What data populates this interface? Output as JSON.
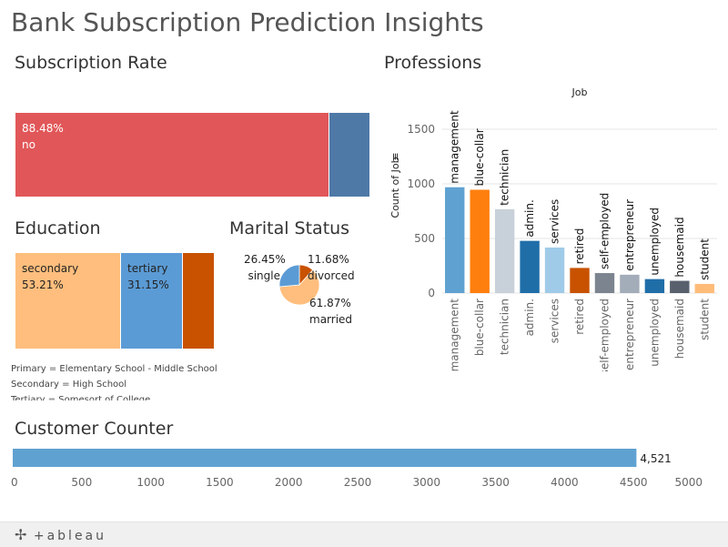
{
  "dashboard": {
    "title": "Bank Subscription Prediction Insights"
  },
  "subscription": {
    "title": "Subscription Rate",
    "segments": [
      {
        "label": "no",
        "percent": "88.48%",
        "value": 88.48,
        "color": "#e15759"
      },
      {
        "label": "",
        "percent": "",
        "value": 11.52,
        "color": "#4e79a7"
      }
    ]
  },
  "education": {
    "title": "Education",
    "segments": [
      {
        "label": "secondary",
        "percent": "53.21%",
        "value": 53.21,
        "color": "#ffbe7d"
      },
      {
        "label": "tertiary",
        "percent": "31.15%",
        "value": 31.15,
        "color": "#5b9bd5"
      },
      {
        "label": "",
        "percent": "",
        "value": 15.64,
        "color": "#c85200"
      }
    ],
    "notes": [
      "Primary = Elementary School - Middle School",
      "Secondary = High School",
      "Tertiary = Somesort of College"
    ]
  },
  "marital": {
    "title": "Marital Status",
    "slices": [
      {
        "label": "divorced",
        "percent": "11.68%",
        "value": 11.68,
        "color": "#c85200"
      },
      {
        "label": "married",
        "percent": "61.87%",
        "value": 61.87,
        "color": "#ffbe7d"
      },
      {
        "label": "single",
        "percent": "26.45%",
        "value": 26.45,
        "color": "#5b9bd5"
      }
    ]
  },
  "professions": {
    "title": "Professions"
  },
  "customer_counter": {
    "title": "Customer Counter"
  },
  "footer": {
    "brand": "+ableau"
  },
  "chart_data": [
    {
      "type": "bar",
      "title": "Job",
      "ylabel": "Count of Job",
      "categories": [
        "management",
        "blue-collar",
        "technician",
        "admin.",
        "services",
        "retired",
        "self-employed",
        "entrepreneur",
        "unemployed",
        "housemaid",
        "student"
      ],
      "values": [
        969,
        946,
        768,
        478,
        417,
        230,
        183,
        168,
        128,
        112,
        84
      ],
      "colors": [
        "#5fa2d1",
        "#ff7f0e",
        "#c8d0d9",
        "#1f6ea8",
        "#a0cbe8",
        "#c85200",
        "#7b848f",
        "#a3acb9",
        "#1f6ea8",
        "#57606c",
        "#ffbc79"
      ],
      "yticks": [
        0,
        500,
        1000,
        1500
      ],
      "ylim": [
        0,
        1700
      ],
      "grid": true
    },
    {
      "type": "bar",
      "title": "Customer Counter",
      "orientation": "horizontal",
      "values": [
        4521
      ],
      "value_label": "4,521",
      "xticks": [
        0,
        500,
        1000,
        1500,
        2000,
        2500,
        3000,
        3500,
        4000,
        4500,
        5000
      ],
      "xlim": [
        0,
        5000
      ],
      "color": "#5fa2d1"
    }
  ]
}
